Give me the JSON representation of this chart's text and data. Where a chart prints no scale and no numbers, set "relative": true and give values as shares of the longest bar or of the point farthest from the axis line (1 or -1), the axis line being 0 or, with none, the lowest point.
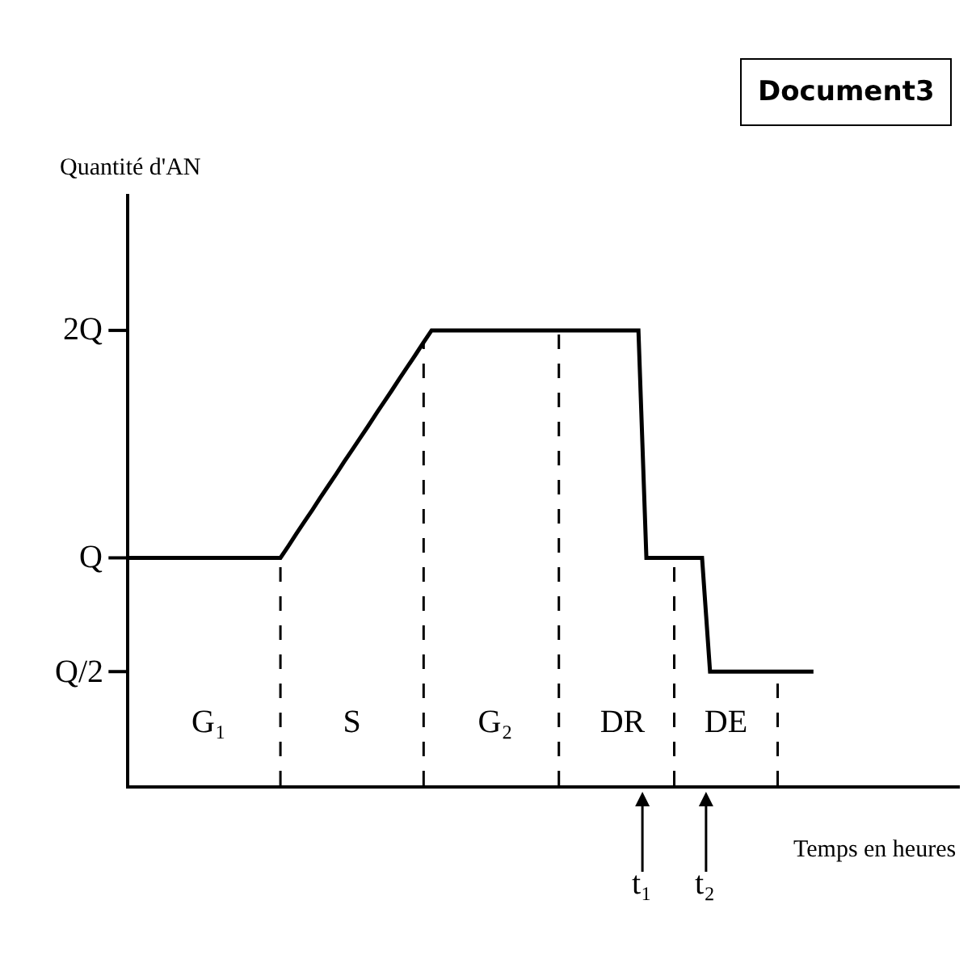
{
  "chart_data": {
    "type": "line",
    "relative": true,
    "xlabel": "Temps en heures",
    "categories": [
      null,
      null,
      null,
      null,
      null,
      null,
      null,
      null,
      null,
      null,
      "G₁",
      null,
      null,
      null,
      null,
      null,
      null,
      null,
      null,
      null,
      null,
      null,
      null,
      null,
      null,
      null,
      null,
      null,
      "S",
      null,
      null,
      null,
      null,
      null,
      null,
      null,
      null,
      null,
      null,
      null,
      null,
      null,
      null,
      null,
      null,
      null,
      "G₂",
      null,
      null,
      null,
      null,
      null,
      null,
      null,
      null,
      null,
      null,
      null,
      null,
      null,
      null,
      null,
      "DR",
      null,
      null,
      null,
      null,
      null,
      null,
      null,
      null,
      null,
      null,
      null,
      null,
      "DE",
      null,
      null,
      null,
      null,
      null,
      null,
      null,
      null,
      null,
      null,
      null
    ],
    "series": [
      {
        "color": "#000000",
        "values": [
          0.5,
          0.5,
          0.5,
          0.5,
          0.5,
          0.5,
          0.5,
          0.5,
          0.5,
          0.5,
          0.5,
          0.5,
          0.5,
          0.5,
          0.5,
          0.5,
          0.5,
          0.5,
          0.5,
          0.5,
          0.526,
          0.553,
          0.579,
          0.605,
          0.632,
          0.658,
          0.684,
          0.711,
          0.737,
          0.763,
          0.789,
          0.816,
          0.842,
          0.868,
          0.895,
          0.921,
          0.947,
          0.974,
          1,
          1,
          1,
          1,
          1,
          1,
          1,
          1,
          1,
          1,
          1,
          1,
          1,
          1,
          1,
          1,
          1,
          1,
          1,
          1,
          1,
          1,
          1,
          1,
          1,
          1,
          1,
          0.5,
          0.5,
          0.5,
          0.5,
          0.5,
          0.5,
          0.5,
          0.5,
          0.25,
          0.25,
          0.25,
          0.25,
          0.25,
          0.25,
          0.25,
          0.25,
          0.25,
          0.25,
          0.25,
          0.25,
          0.25,
          0.25
        ]
      }
    ],
    "grid": false,
    "marker": "none",
    "line_style": "solid",
    "annotations": [
      "Document3",
      "Quantité d'AN",
      "Q/2",
      "Q",
      "2Q",
      "t₁",
      "t₂"
    ]
  }
}
